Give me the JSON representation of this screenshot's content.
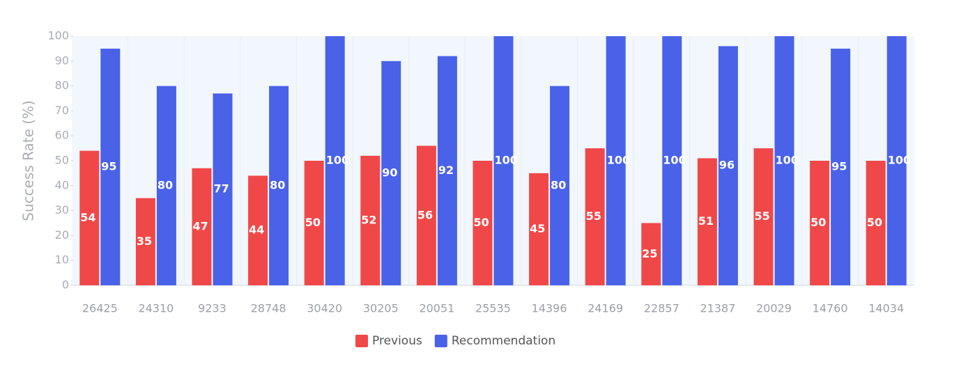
{
  "chart_data": {
    "type": "grouped-bar",
    "y_label": "Success Rate (%)",
    "categories": [
      "26425",
      "24310",
      "9233",
      "28748",
      "30420",
      "30205",
      "20051",
      "25535",
      "14396",
      "24169",
      "22857",
      "21387",
      "20029",
      "14760",
      "14034"
    ],
    "series": [
      {
        "name": "Previous",
        "color": "#f04848",
        "values": [
          54,
          35,
          47,
          44,
          50,
          52,
          56,
          50,
          45,
          55,
          25,
          51,
          55,
          50,
          50
        ]
      },
      {
        "name": "Recommendation",
        "color": "#4a62e8",
        "values": [
          95,
          80,
          77,
          80,
          100,
          90,
          92,
          100,
          80,
          100,
          100,
          96,
          100,
          95,
          100
        ]
      }
    ],
    "ylim": [
      0,
      100
    ],
    "yticks": [
      0,
      10,
      20,
      30,
      40,
      50,
      60,
      70,
      80,
      90,
      100
    ],
    "legend": "bottom"
  }
}
